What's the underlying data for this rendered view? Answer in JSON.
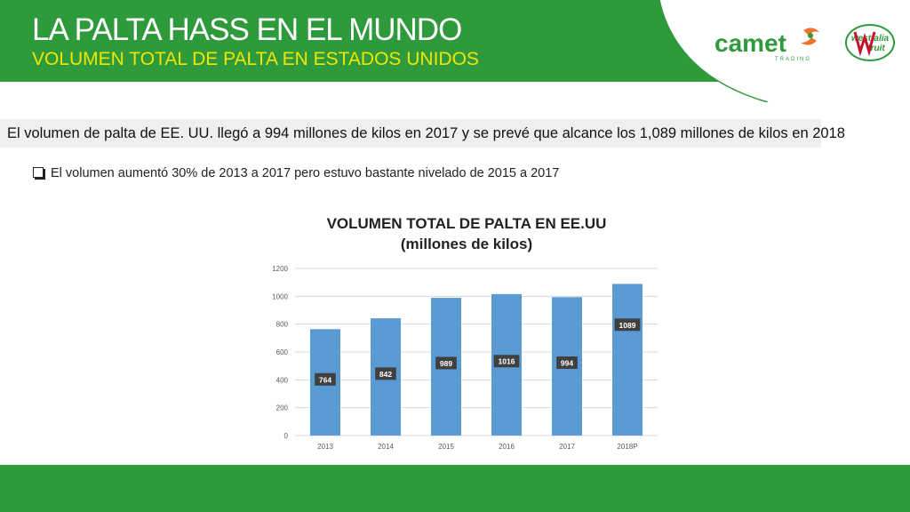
{
  "header": {
    "title": "LA PALTA HASS EN EL MUNDO",
    "subtitle": "VOLUMEN TOTAL DE PALTA EN ESTADOS UNIDOS"
  },
  "logos": {
    "camet_name": "camet",
    "camet_tagline": "TRADING",
    "westfalia_line1": "westfalia",
    "westfalia_line2": "fruit"
  },
  "statement": "El volumen de palta de EE. UU. llegó a 994 millones de kilos en 2017 y se prevé que alcance los 1,089 millones de kilos en 2018",
  "bullet": "El volumen aumentó 30% de 2013 a 2017 pero estuvo bastante nivelado de 2015 a 2017",
  "colors": {
    "brand_green": "#2e9a3c",
    "subtitle_yellow": "#f2e600",
    "bar": "#5b9bd5",
    "data_label_bg": "#404040",
    "camet_orange": "#f0722a",
    "westfalia_red": "#c8102e"
  },
  "chart_data": {
    "type": "bar",
    "title": "VOLUMEN TOTAL DE PALTA EN EE.UU",
    "subtitle": "(millones de kilos)",
    "categories": [
      "2013",
      "2014",
      "2015",
      "2016",
      "2017",
      "2018P"
    ],
    "values": [
      764,
      842,
      989,
      1016,
      994,
      1089
    ],
    "data_labels": [
      "764",
      "842",
      "989",
      "1016",
      "994",
      "1089"
    ],
    "ylim": [
      0,
      1200
    ],
    "yticks": [
      "0",
      "200",
      "400",
      "600",
      "800",
      "1000",
      "1200"
    ],
    "grid": true,
    "legend": "none"
  }
}
